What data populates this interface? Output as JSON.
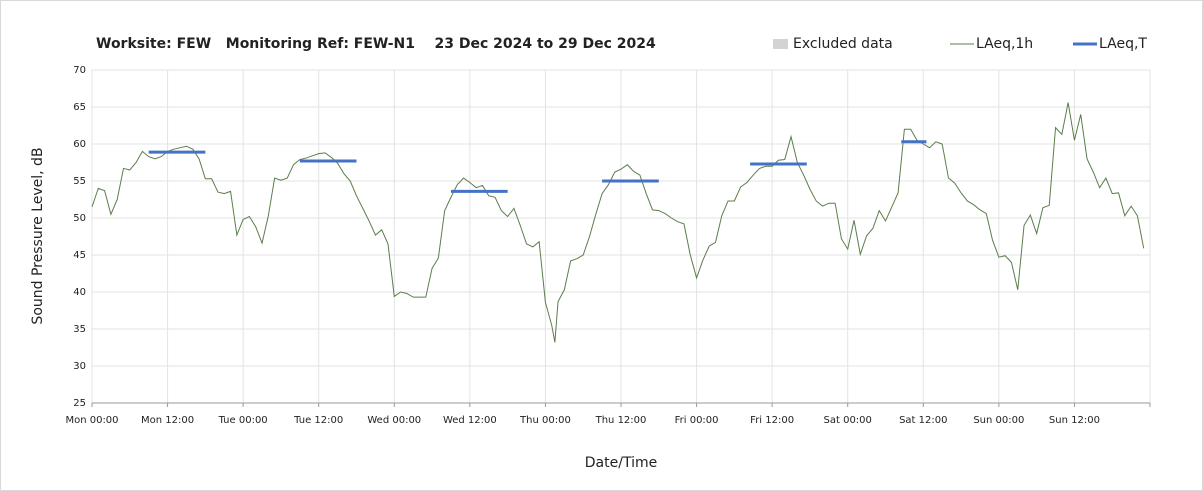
{
  "chart_data": {
    "type": "line",
    "title": "Worksite: FEW   Monitoring Ref: FEW-N1    23 Dec 2024 to 29 Dec 2024",
    "xlabel": "Date/Time",
    "ylabel": "Sound Pressure Level, dB",
    "xlim": [
      0,
      168
    ],
    "ylim": [
      25,
      70
    ],
    "xticks": [
      {
        "value": 0,
        "label": "Mon 00:00"
      },
      {
        "value": 12,
        "label": "Mon 12:00"
      },
      {
        "value": 24,
        "label": "Tue 00:00"
      },
      {
        "value": 36,
        "label": "Tue 12:00"
      },
      {
        "value": 48,
        "label": "Wed 00:00"
      },
      {
        "value": 60,
        "label": "Wed 12:00"
      },
      {
        "value": 72,
        "label": "Thu 00:00"
      },
      {
        "value": 84,
        "label": "Thu 12:00"
      },
      {
        "value": 96,
        "label": "Fri 00:00"
      },
      {
        "value": 108,
        "label": "Fri 12:00"
      },
      {
        "value": 120,
        "label": "Sat 00:00"
      },
      {
        "value": 132,
        "label": "Sat 12:00"
      },
      {
        "value": 144,
        "label": "Sun 00:00"
      },
      {
        "value": 156,
        "label": "Sun 12:00"
      },
      {
        "value": 168,
        "label": ""
      }
    ],
    "yticks": [
      25,
      30,
      35,
      40,
      45,
      50,
      55,
      60,
      65,
      70
    ],
    "grid": true,
    "series": [
      {
        "name": "Excluded data",
        "color": "#d3d3d3",
        "values": []
      },
      {
        "name": "LAeq,1h",
        "color": "#5b7d4c",
        "x": [
          0,
          1,
          2,
          3,
          4,
          5,
          6,
          7,
          8,
          9,
          10,
          11,
          12,
          13,
          14,
          15,
          16,
          17,
          18,
          19,
          20,
          21,
          22,
          23,
          24,
          25,
          26,
          27,
          28,
          29,
          30,
          31,
          32,
          33,
          34,
          35,
          36,
          37,
          38,
          39,
          40,
          41,
          42,
          43,
          44,
          45,
          46,
          47,
          48,
          49,
          50,
          51,
          52,
          53,
          54,
          55,
          56,
          57,
          58,
          59,
          60,
          61,
          62,
          63,
          64,
          65,
          66,
          67,
          68,
          69,
          70,
          71,
          72,
          73,
          73.5,
          74,
          75,
          76,
          77,
          78,
          79,
          80,
          81,
          82,
          83,
          84,
          85,
          86,
          87,
          88,
          89,
          90,
          91,
          92,
          93,
          94,
          95,
          96,
          97,
          98,
          99,
          100,
          101,
          102,
          103,
          104,
          105,
          106,
          107,
          108,
          109,
          110,
          111,
          112,
          113,
          114,
          115,
          116,
          117,
          118,
          119,
          120,
          121,
          122,
          123,
          124,
          125,
          126,
          127,
          128,
          129,
          130,
          131,
          132,
          133,
          134,
          135,
          136,
          137,
          138,
          139,
          140,
          141,
          142,
          143,
          144,
          145,
          146,
          147,
          148,
          149,
          150,
          151,
          152,
          153,
          154,
          155,
          156,
          157,
          158,
          159,
          160,
          161,
          162,
          163,
          164,
          165,
          166,
          167
        ],
        "values": [
          51.5,
          54,
          53.7,
          50.5,
          52.5,
          56.7,
          56.5,
          57.5,
          59,
          58.3,
          58,
          58.3,
          59,
          59.3,
          59.5,
          59.7,
          59.3,
          58,
          55.3,
          55.3,
          53.5,
          53.3,
          53.6,
          47.7,
          49.8,
          50.2,
          48.8,
          46.6,
          50.3,
          55.4,
          55.1,
          55.4,
          57.2,
          57.9,
          58.1,
          58.4,
          58.7,
          58.8,
          58.2,
          57.4,
          56,
          55,
          53,
          51.3,
          49.6,
          47.7,
          48.4,
          46.5,
          39.4,
          40,
          39.8,
          39.3,
          39.3,
          39.3,
          43.2,
          44.6,
          51,
          52.8,
          54.5,
          55.4,
          54.8,
          54.1,
          54.4,
          53,
          52.8,
          51,
          50.2,
          51.3,
          49,
          46.5,
          46.1,
          46.8,
          38.6,
          35.5,
          33.2,
          38.7,
          40.3,
          44.2,
          44.5,
          45,
          47.5,
          50.5,
          53.3,
          54.5,
          56.2,
          56.6,
          57.2,
          56.3,
          55.8,
          53.3,
          51.1,
          51,
          50.6,
          50,
          49.5,
          49.2,
          45,
          41.9,
          44.3,
          46.2,
          46.7,
          50.3,
          52.3,
          52.3,
          54.2,
          54.8,
          55.8,
          56.7,
          57,
          57,
          57.8,
          57.9,
          61,
          57.5,
          55.8,
          53.9,
          52.3,
          51.6,
          52,
          52,
          47.2,
          45.8,
          49.7,
          45.1,
          47.6,
          48.6,
          51,
          49.6,
          51.5,
          53.4,
          62,
          62,
          60.5,
          60,
          59.5,
          60.3,
          60,
          55.4,
          54.7,
          53.4,
          52.3,
          51.8,
          51.1,
          50.6,
          47,
          44.7,
          44.9,
          44,
          40.3,
          49,
          50.4,
          47.9,
          51.4,
          51.7,
          62.2,
          61.3,
          65.6,
          60.5,
          64,
          58,
          56.2,
          54.1,
          55.4,
          53.3,
          53.4,
          50.3,
          51.6,
          50.3,
          45.9
        ]
      },
      {
        "name": "LAeq,T",
        "color": "#4472c4",
        "start": [
          9,
          33,
          57,
          81,
          104.5,
          128.5
        ],
        "end": [
          18,
          42,
          66,
          90,
          113.5,
          132.5
        ],
        "values": [
          58.9,
          57.7,
          53.6,
          55,
          57.3,
          60.3
        ]
      }
    ]
  }
}
